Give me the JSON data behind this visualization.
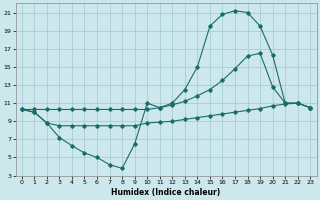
{
  "xlabel": "Humidex (Indice chaleur)",
  "bg_color": "#cce8ec",
  "line_color": "#1a6b6b",
  "grid_color": "#a0c8cc",
  "xlim": [
    -0.5,
    23.5
  ],
  "ylim": [
    3,
    22
  ],
  "xticks": [
    0,
    1,
    2,
    3,
    4,
    5,
    6,
    7,
    8,
    9,
    10,
    11,
    12,
    13,
    14,
    15,
    16,
    17,
    18,
    19,
    20,
    21,
    22,
    23
  ],
  "yticks": [
    3,
    5,
    7,
    9,
    11,
    13,
    15,
    17,
    19,
    21
  ],
  "line1_x": [
    0,
    1,
    2,
    3,
    4,
    5,
    6,
    7,
    8,
    9,
    10,
    11,
    12,
    13,
    14,
    15,
    16,
    17,
    18,
    19,
    20,
    21,
    22,
    23
  ],
  "line1_y": [
    10.3,
    10.0,
    8.8,
    7.2,
    6.3,
    5.5,
    5.0,
    4.2,
    3.8,
    6.5,
    11.0,
    10.5,
    11.0,
    12.5,
    15.0,
    19.5,
    20.8,
    21.2,
    21.0,
    19.5,
    16.3,
    11.0,
    11.0,
    10.5
  ],
  "line2_x": [
    0,
    1,
    2,
    3,
    4,
    5,
    6,
    7,
    8,
    9,
    10,
    11,
    12,
    13,
    14,
    15,
    16,
    17,
    18,
    19,
    20,
    21,
    22,
    23
  ],
  "line2_y": [
    10.3,
    10.3,
    10.3,
    10.3,
    10.3,
    10.3,
    10.3,
    10.3,
    10.3,
    10.3,
    10.3,
    10.5,
    10.8,
    11.2,
    11.8,
    12.5,
    13.5,
    14.8,
    16.2,
    16.5,
    12.8,
    11.0,
    11.0,
    10.5
  ],
  "line3_x": [
    0,
    1,
    2,
    3,
    4,
    5,
    6,
    7,
    8,
    9,
    10,
    11,
    12,
    13,
    14,
    15,
    16,
    17,
    18,
    19,
    20,
    21,
    22,
    23
  ],
  "line3_y": [
    10.3,
    10.0,
    8.8,
    8.5,
    8.5,
    8.5,
    8.5,
    8.5,
    8.5,
    8.5,
    8.8,
    8.9,
    9.0,
    9.2,
    9.4,
    9.6,
    9.8,
    10.0,
    10.2,
    10.4,
    10.7,
    10.9,
    11.0,
    10.5
  ]
}
